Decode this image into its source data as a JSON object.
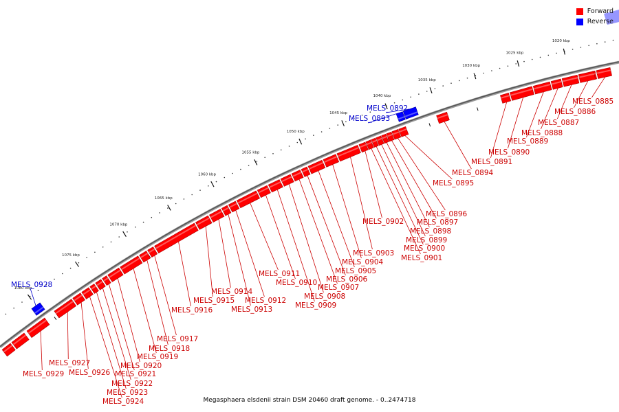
{
  "legend": [
    {
      "label": "Forward",
      "color": "#ff0000"
    },
    {
      "label": "Reverse",
      "color": "#0000ff"
    }
  ],
  "caption": "Megasphaera elsdenii strain DSM 20460 draft genome. - 0..2474718",
  "scale": {
    "tick_labels": [
      "1020 kbp",
      "1025 kbp",
      "1030 kbp",
      "1035 kbp",
      "1040 kbp",
      "1045 kbp",
      "1050 kbp",
      "1055 kbp",
      "1060 kbp",
      "1065 kbp",
      "1070 kbp",
      "1075 kbp",
      "1080 kbp"
    ]
  },
  "genes": [
    {
      "name": "MELS_0885",
      "strand": "forward"
    },
    {
      "name": "MELS_0886",
      "strand": "forward"
    },
    {
      "name": "MELS_0887",
      "strand": "forward"
    },
    {
      "name": "MELS_0888",
      "strand": "forward"
    },
    {
      "name": "MELS_0889",
      "strand": "forward"
    },
    {
      "name": "MELS_0890",
      "strand": "forward"
    },
    {
      "name": "MELS_0891",
      "strand": "forward"
    },
    {
      "name": "MELS_0892",
      "strand": "reverse"
    },
    {
      "name": "MELS_0893",
      "strand": "reverse"
    },
    {
      "name": "MELS_0894",
      "strand": "forward"
    },
    {
      "name": "MELS_0895",
      "strand": "forward"
    },
    {
      "name": "MELS_0896",
      "strand": "forward"
    },
    {
      "name": "MELS_0897",
      "strand": "forward"
    },
    {
      "name": "MELS_0898",
      "strand": "forward"
    },
    {
      "name": "MELS_0899",
      "strand": "forward"
    },
    {
      "name": "MELS_0900",
      "strand": "forward"
    },
    {
      "name": "MELS_0901",
      "strand": "forward"
    },
    {
      "name": "MELS_0902",
      "strand": "forward"
    },
    {
      "name": "MELS_0903",
      "strand": "forward"
    },
    {
      "name": "MELS_0904",
      "strand": "forward"
    },
    {
      "name": "MELS_0905",
      "strand": "forward"
    },
    {
      "name": "MELS_0906",
      "strand": "forward"
    },
    {
      "name": "MELS_0907",
      "strand": "forward"
    },
    {
      "name": "MELS_0908",
      "strand": "forward"
    },
    {
      "name": "MELS_0909",
      "strand": "forward"
    },
    {
      "name": "MELS_0910",
      "strand": "forward"
    },
    {
      "name": "MELS_0911",
      "strand": "forward"
    },
    {
      "name": "MELS_0912",
      "strand": "forward"
    },
    {
      "name": "MELS_0913",
      "strand": "forward"
    },
    {
      "name": "MELS_0914",
      "strand": "forward"
    },
    {
      "name": "MELS_0915",
      "strand": "forward"
    },
    {
      "name": "MELS_0916",
      "strand": "forward"
    },
    {
      "name": "MELS_0917",
      "strand": "forward"
    },
    {
      "name": "MELS_0918",
      "strand": "forward"
    },
    {
      "name": "MELS_0919",
      "strand": "forward"
    },
    {
      "name": "MELS_0920",
      "strand": "forward"
    },
    {
      "name": "MELS_0921",
      "strand": "forward"
    },
    {
      "name": "MELS_0922",
      "strand": "forward"
    },
    {
      "name": "MELS_0923",
      "strand": "forward"
    },
    {
      "name": "MELS_0924",
      "strand": "forward"
    },
    {
      "name": "MELS_0926",
      "strand": "forward"
    },
    {
      "name": "MELS_0927",
      "strand": "forward"
    },
    {
      "name": "MELS_0928",
      "strand": "reverse"
    },
    {
      "name": "MELS_0929",
      "strand": "forward"
    }
  ]
}
